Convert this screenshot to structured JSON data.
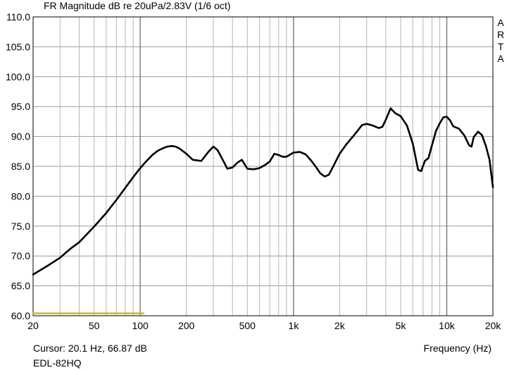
{
  "chart_data": {
    "type": "line",
    "title": "FR Magnitude dB re 20uPa/2.83V (1/6 oct)",
    "xlabel": "Frequency (Hz)",
    "ylabel": "",
    "x_scale": "log",
    "xlim": [
      20,
      20000
    ],
    "ylim": [
      60,
      110
    ],
    "grid": true,
    "y_ticks": [
      "110.0",
      "105.0",
      "100.0",
      "95.0",
      "90.0",
      "85.0",
      "80.0",
      "75.0",
      "70.0",
      "65.0",
      "60.0"
    ],
    "y_tick_values": [
      110,
      105,
      100,
      95,
      90,
      85,
      80,
      75,
      70,
      65,
      60
    ],
    "x_ticks": [
      "20",
      "50",
      "100",
      "200",
      "500",
      "1k",
      "2k",
      "5k",
      "10k",
      "20k"
    ],
    "x_tick_values": [
      20,
      50,
      100,
      200,
      500,
      1000,
      2000,
      5000,
      10000,
      20000
    ],
    "series": [
      {
        "color": "#000000",
        "x": [
          20,
          25,
          30,
          35,
          40,
          50,
          60,
          70,
          80,
          90,
          100,
          110,
          120,
          130,
          140,
          150,
          160,
          170,
          180,
          200,
          220,
          250,
          280,
          300,
          320,
          350,
          370,
          400,
          430,
          460,
          500,
          550,
          600,
          650,
          700,
          750,
          800,
          850,
          900,
          1000,
          1100,
          1200,
          1300,
          1400,
          1500,
          1600,
          1700,
          1800,
          2000,
          2200,
          2500,
          2800,
          3000,
          3300,
          3600,
          3800,
          4000,
          4300,
          4600,
          5000,
          5500,
          6000,
          6500,
          6800,
          7200,
          7600,
          8000,
          8500,
          9000,
          9500,
          10000,
          10500,
          11000,
          12000,
          13000,
          14000,
          14500,
          15000,
          16000,
          17000,
          18000,
          19000,
          20000
        ],
        "values": [
          66.9,
          68.4,
          69.7,
          71.2,
          72.3,
          74.9,
          77.2,
          79.4,
          81.4,
          83.2,
          84.7,
          85.9,
          86.9,
          87.6,
          88.0,
          88.3,
          88.4,
          88.3,
          88.0,
          87.1,
          86.1,
          85.9,
          87.5,
          88.3,
          87.7,
          85.8,
          84.6,
          84.8,
          85.6,
          86.1,
          84.6,
          84.5,
          84.7,
          85.2,
          85.8,
          87.1,
          86.9,
          86.6,
          86.6,
          87.3,
          87.4,
          87.0,
          86.0,
          84.9,
          83.8,
          83.3,
          83.6,
          84.8,
          87.1,
          88.6,
          90.3,
          91.9,
          92.1,
          91.8,
          91.4,
          91.6,
          92.8,
          94.7,
          93.9,
          93.4,
          91.8,
          88.8,
          84.4,
          84.2,
          85.9,
          86.4,
          88.5,
          90.9,
          92.2,
          93.2,
          93.3,
          92.7,
          91.7,
          91.3,
          90.2,
          88.5,
          88.3,
          89.9,
          90.8,
          90.2,
          88.4,
          86.1,
          81.5
        ]
      },
      {
        "name": "",
        "color": "#c8bf2a",
        "x": [
          20,
          105
        ],
        "values": [
          60.4,
          60.4
        ]
      }
    ],
    "annotations": {
      "cursor": "Cursor: 20.1 Hz, 66.87 dB",
      "device": "EDL-82HQ",
      "watermark": [
        "A",
        "R",
        "T",
        "A"
      ]
    }
  }
}
